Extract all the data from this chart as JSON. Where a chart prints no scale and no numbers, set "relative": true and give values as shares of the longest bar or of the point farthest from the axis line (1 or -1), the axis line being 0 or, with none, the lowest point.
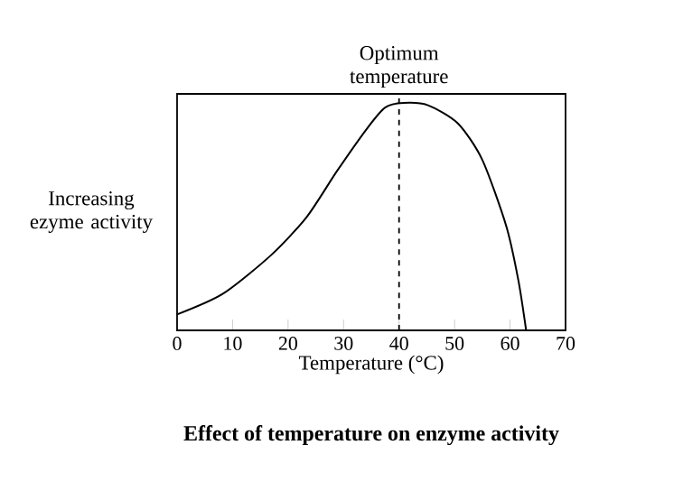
{
  "chart_data": {
    "type": "line",
    "relative": true,
    "title": "Effect of temperature on enzyme activity",
    "xlabel": "Temperature (°C)",
    "ylabel": "Increasing ezyme activity",
    "color": "#000000",
    "marker": "none",
    "line_style": "solid",
    "xlim": [
      0,
      70
    ],
    "xticks": [
      0,
      10,
      20,
      30,
      40,
      50,
      60,
      70
    ],
    "x": [
      0,
      8.2,
      16.9,
      23.4,
      28.8,
      34.3,
      37.5,
      40.8,
      45.2,
      50.6,
      55,
      59.3,
      61.5,
      62.9
    ],
    "values": [
      0.07,
      0.16,
      0.33,
      0.5,
      0.7,
      0.89,
      0.98,
      1.0,
      0.99,
      0.91,
      0.75,
      0.46,
      0.22,
      0
    ],
    "ref_lines": [
      {
        "axis": "x",
        "value": 40,
        "label": "Optimum temperature",
        "line_style": "dashed",
        "color": "#000000"
      }
    ]
  }
}
